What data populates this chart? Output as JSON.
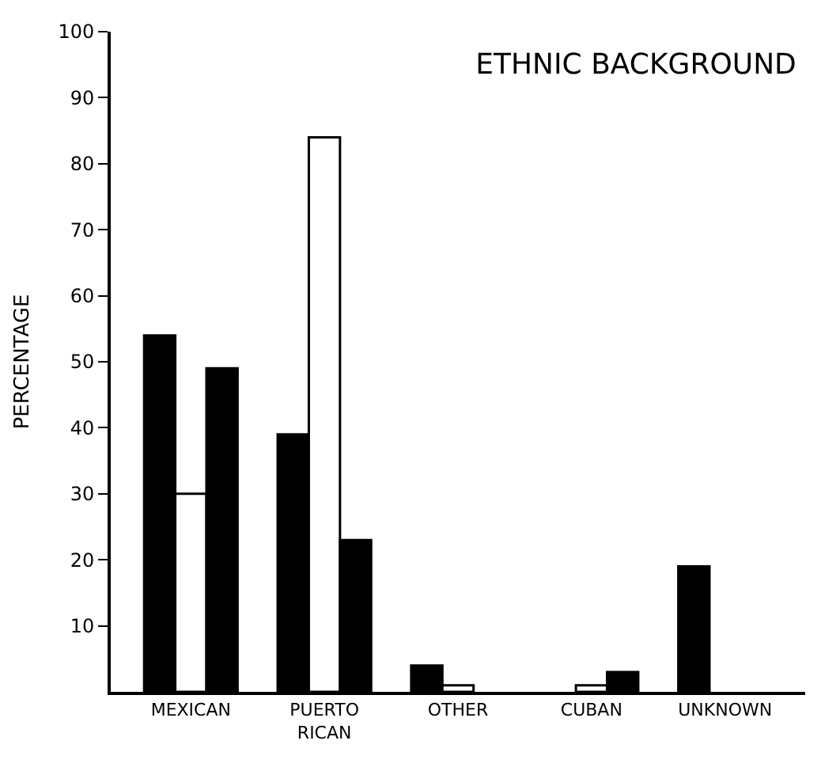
{
  "chart_data": {
    "type": "bar",
    "title": "ETHNIC BACKGROUND",
    "ylabel": "PERCENTAGE",
    "categories": [
      "MEXICAN",
      "PUERTO\nRICAN",
      "OTHER",
      "CUBAN",
      "UNKNOWN"
    ],
    "series": [
      {
        "color": "#000000",
        "values": [
          54,
          39,
          4,
          null,
          19
        ]
      },
      {
        "color": "#ffffff",
        "values": [
          30,
          84,
          1,
          1,
          null
        ]
      },
      {
        "color": "#000000",
        "values": [
          49,
          23,
          null,
          3,
          null
        ]
      }
    ],
    "ylim": [
      0,
      100
    ],
    "yticks": [
      10,
      20,
      30,
      40,
      50,
      60,
      70,
      80,
      90,
      100
    ]
  }
}
